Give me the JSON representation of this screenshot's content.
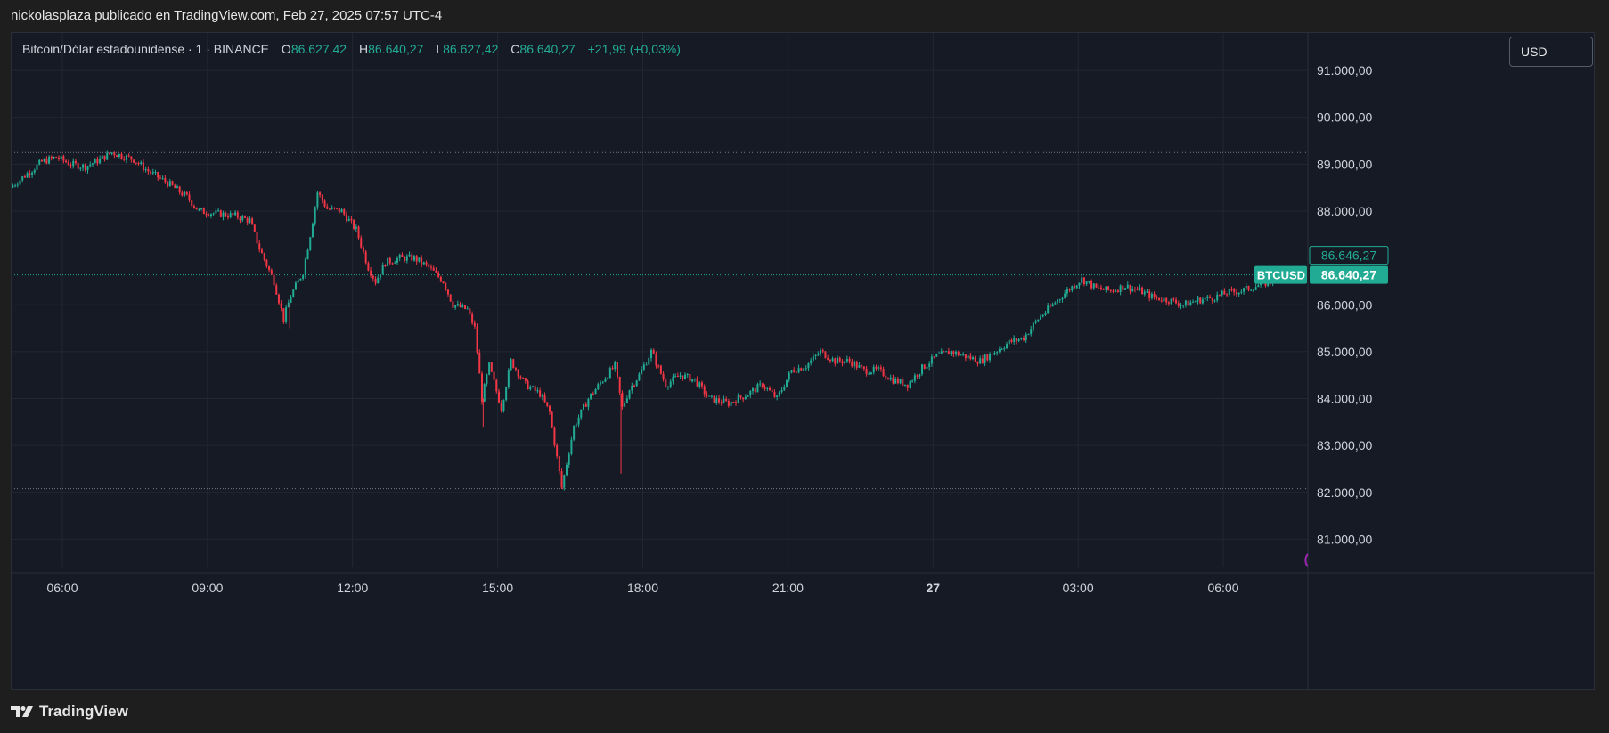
{
  "header": {
    "published_by": "nickolasplaza publicado en TradingView.com, Feb 27, 2025 07:57 UTC-4"
  },
  "legend": {
    "symbol": "Bitcoin/Dólar estadounidense · 1 · BINANCE",
    "o_label": "O",
    "o_value": "86.627,42",
    "h_label": "H",
    "h_value": "86.640,27",
    "l_label": "L",
    "l_value": "86.627,42",
    "c_label": "C",
    "c_value": "86.640,27",
    "change": "+21,99 (+0,03%)"
  },
  "currency_button": "USD",
  "footer": {
    "brand": "TradingView"
  },
  "colors": {
    "up": "#22ab94",
    "down": "#f23645",
    "grid": "#232733",
    "background": "#161a25",
    "axis_text": "#d1d4dc",
    "marker": "#9c27b0"
  },
  "chart_data": {
    "type": "candlestick",
    "symbol": "BTCUSD",
    "interval": "1",
    "exchange": "BINANCE",
    "y_ticks": [
      "91.000,00",
      "90.000,00",
      "89.000,00",
      "88.000,00",
      "86.000,00",
      "85.000,00",
      "84.000,00",
      "83.000,00",
      "82.000,00",
      "81.000,00"
    ],
    "y_tick_values": [
      91000,
      90000,
      89000,
      88000,
      86000,
      85000,
      84000,
      83000,
      82000,
      81000
    ],
    "ylim": [
      80400,
      91800
    ],
    "x_ticks": [
      "06:00",
      "09:00",
      "12:00",
      "15:00",
      "18:00",
      "21:00",
      "27",
      "03:00",
      "06:00"
    ],
    "x_tick_hours": [
      6,
      9,
      12,
      15,
      18,
      21,
      24,
      27,
      30
    ],
    "x_range_hours": [
      4.95,
      31.75
    ],
    "last_price": 86640.27,
    "last_price_label": "86.640,27",
    "prev_price_label": "86.646,27",
    "symbol_badge": "BTCUSD",
    "dotted_high": 89250,
    "dotted_low": 82080,
    "price_path": [
      [
        4.95,
        88500
      ],
      [
        5.3,
        88800
      ],
      [
        5.6,
        89050
      ],
      [
        5.9,
        89150
      ],
      [
        6.2,
        89000
      ],
      [
        6.5,
        88950
      ],
      [
        6.8,
        89100
      ],
      [
        7.05,
        89250
      ],
      [
        7.5,
        89100
      ],
      [
        7.8,
        88850
      ],
      [
        8.2,
        88600
      ],
      [
        8.6,
        88300
      ],
      [
        8.85,
        88000
      ],
      [
        9.2,
        87950
      ],
      [
        9.6,
        87900
      ],
      [
        9.9,
        87800
      ],
      [
        10.1,
        87200
      ],
      [
        10.4,
        86500
      ],
      [
        10.6,
        85700
      ],
      [
        10.75,
        86200
      ],
      [
        11.0,
        86700
      ],
      [
        11.15,
        87500
      ],
      [
        11.3,
        88400
      ],
      [
        11.5,
        88050
      ],
      [
        11.8,
        88000
      ],
      [
        12.1,
        87600
      ],
      [
        12.35,
        86800
      ],
      [
        12.5,
        86500
      ],
      [
        12.7,
        86900
      ],
      [
        13.0,
        87000
      ],
      [
        13.3,
        87000
      ],
      [
        13.6,
        86800
      ],
      [
        13.9,
        86500
      ],
      [
        14.1,
        86000
      ],
      [
        14.4,
        85900
      ],
      [
        14.55,
        85500
      ],
      [
        14.7,
        84000
      ],
      [
        14.85,
        84700
      ],
      [
        15.1,
        83800
      ],
      [
        15.3,
        84800
      ],
      [
        15.6,
        84300
      ],
      [
        15.9,
        84100
      ],
      [
        16.1,
        83700
      ],
      [
        16.35,
        82100
      ],
      [
        16.6,
        83400
      ],
      [
        16.9,
        84000
      ],
      [
        17.2,
        84400
      ],
      [
        17.45,
        84700
      ],
      [
        17.6,
        83800
      ],
      [
        17.75,
        84200
      ],
      [
        17.95,
        84500
      ],
      [
        18.2,
        85000
      ],
      [
        18.5,
        84300
      ],
      [
        18.8,
        84500
      ],
      [
        19.1,
        84400
      ],
      [
        19.4,
        84000
      ],
      [
        19.8,
        83900
      ],
      [
        20.2,
        84100
      ],
      [
        20.5,
        84300
      ],
      [
        20.8,
        84000
      ],
      [
        21.1,
        84600
      ],
      [
        21.4,
        84700
      ],
      [
        21.7,
        85000
      ],
      [
        22.0,
        84800
      ],
      [
        22.3,
        84800
      ],
      [
        22.6,
        84600
      ],
      [
        22.9,
        84600
      ],
      [
        23.2,
        84400
      ],
      [
        23.5,
        84300
      ],
      [
        23.8,
        84650
      ],
      [
        24.1,
        84900
      ],
      [
        24.4,
        85000
      ],
      [
        24.7,
        84900
      ],
      [
        25.0,
        84800
      ],
      [
        25.3,
        85000
      ],
      [
        25.6,
        85200
      ],
      [
        25.9,
        85300
      ],
      [
        26.2,
        85700
      ],
      [
        26.5,
        86000
      ],
      [
        26.8,
        86300
      ],
      [
        27.1,
        86550
      ],
      [
        27.4,
        86350
      ],
      [
        27.7,
        86300
      ],
      [
        28.0,
        86400
      ],
      [
        28.3,
        86300
      ],
      [
        28.6,
        86150
      ],
      [
        28.9,
        86100
      ],
      [
        29.2,
        86000
      ],
      [
        29.5,
        86100
      ],
      [
        29.8,
        86150
      ],
      [
        30.1,
        86250
      ],
      [
        30.4,
        86300
      ],
      [
        30.7,
        86400
      ],
      [
        31.0,
        86500
      ],
      [
        31.2,
        86700
      ],
      [
        31.4,
        86650
      ],
      [
        31.55,
        86640
      ]
    ]
  }
}
